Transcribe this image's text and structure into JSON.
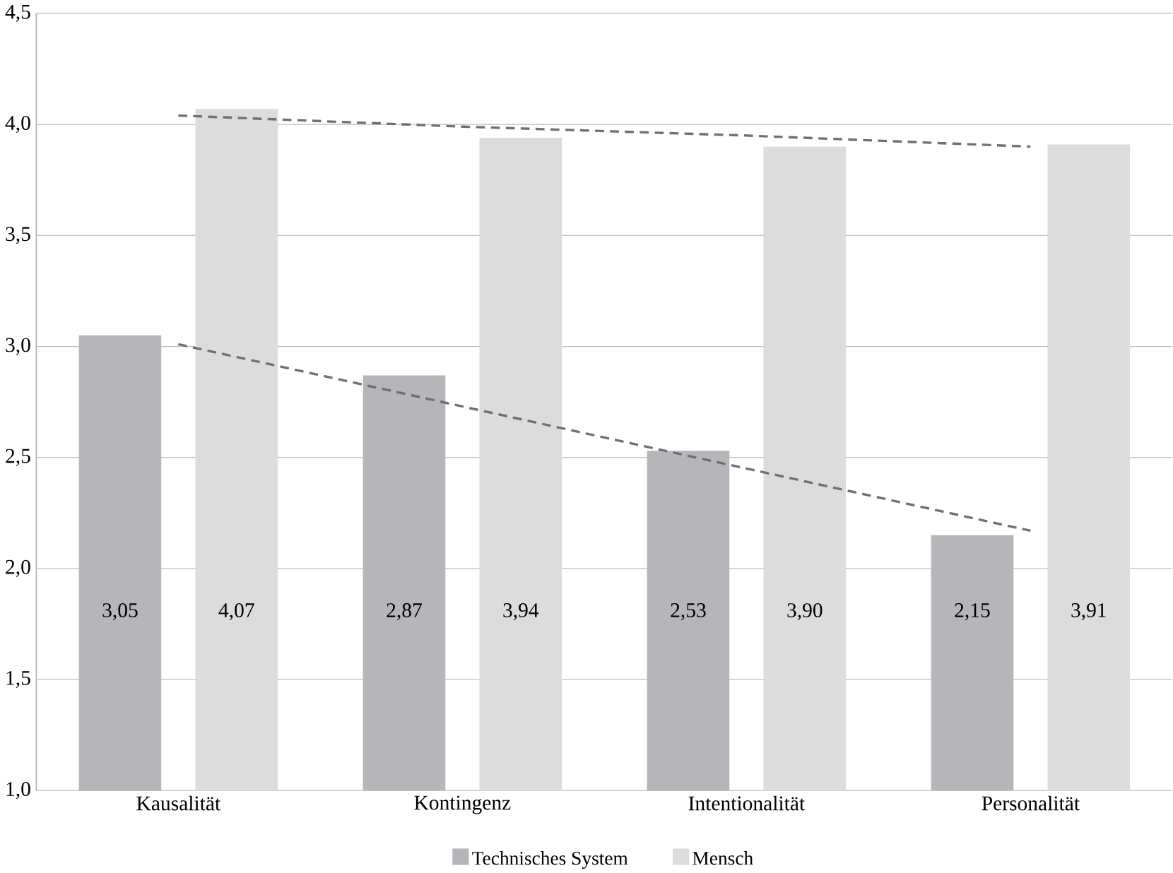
{
  "chart_data": {
    "type": "bar",
    "categories": [
      "Kausalität",
      "Kontingenz",
      "Intentionalität",
      "Personalität"
    ],
    "series": [
      {
        "name": "Technisches System",
        "color": "#b5b5ba",
        "values": [
          3.05,
          2.87,
          2.53,
          2.15
        ],
        "value_labels": [
          "3,05",
          "2,87",
          "2,53",
          "2,15"
        ]
      },
      {
        "name": "Mensch",
        "color": "#dcdcdc",
        "values": [
          4.07,
          3.94,
          3.9,
          3.91
        ],
        "value_labels": [
          "4,07",
          "3,94",
          "3,90",
          "3,91"
        ]
      },
      {
        "type": "line",
        "color": "#707070",
        "line_style": "dashed",
        "values": [
          3.01,
          2.73,
          2.45,
          2.17
        ]
      },
      {
        "type": "line",
        "color": "#707070",
        "line_style": "dashed",
        "values": [
          4.04,
          3.99,
          3.95,
          3.9
        ]
      }
    ],
    "ylim": [
      1.0,
      4.5
    ],
    "yticks": [
      {
        "value": 1.0,
        "label": "1,0"
      },
      {
        "value": 1.5,
        "label": "1,5"
      },
      {
        "value": 2.0,
        "label": "2,0"
      },
      {
        "value": 2.5,
        "label": "2,5"
      },
      {
        "value": 3.0,
        "label": "3,0"
      },
      {
        "value": 3.5,
        "label": "3,5"
      },
      {
        "value": 4.0,
        "label": "4,0"
      },
      {
        "value": 4.5,
        "label": "4,5"
      }
    ],
    "grid": "y",
    "legend": "bottom"
  }
}
